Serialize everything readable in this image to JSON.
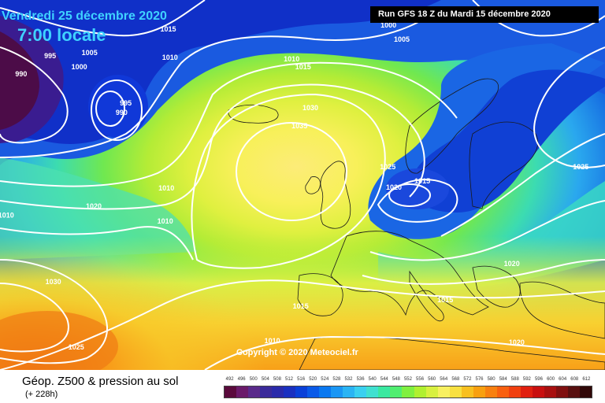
{
  "header": {
    "date": "Vendredi 25 décembre 2020",
    "time": "7:00 locale",
    "run": "Run GFS 18 Z du Mardi 15 décembre 2020"
  },
  "copyright": "Copyright © 2020 Meteociel.fr",
  "legend": {
    "title": "Géop. Z500 & pression au sol",
    "subtitle": "(+ 228h)",
    "scale_labels": [
      "492",
      "496",
      "500",
      "504",
      "508",
      "512",
      "516",
      "520",
      "524",
      "528",
      "532",
      "536",
      "540",
      "544",
      "548",
      "552",
      "556",
      "560",
      "564",
      "568",
      "572",
      "576",
      "580",
      "584",
      "588",
      "592",
      "596",
      "600",
      "604",
      "608",
      "612"
    ],
    "scale_colors": [
      "#5a0a3c",
      "#6a1a6a",
      "#5a2a8a",
      "#3a2a9a",
      "#2a2aaa",
      "#1a30c0",
      "#0a40d8",
      "#0a5ae8",
      "#0a78f0",
      "#1a96f4",
      "#2ab4f4",
      "#3ad0f0",
      "#40e0d0",
      "#3ae8a0",
      "#50ee70",
      "#80f040",
      "#b0f030",
      "#d8f040",
      "#f8f060",
      "#f8e040",
      "#f8c020",
      "#f8a010",
      "#f88010",
      "#f86010",
      "#f04010",
      "#e02010",
      "#c81010",
      "#a81010",
      "#801010",
      "#581010",
      "#300808"
    ]
  },
  "isobars": [
    {
      "label": "1015",
      "x_pct": 27.8,
      "y_pct": 8.5
    },
    {
      "label": "1005",
      "x_pct": 14.8,
      "y_pct": 14.9
    },
    {
      "label": "995",
      "x_pct": 8.3,
      "y_pct": 15.7
    },
    {
      "label": "1000",
      "x_pct": 13.1,
      "y_pct": 18.7
    },
    {
      "label": "1010",
      "x_pct": 28.1,
      "y_pct": 16.2
    },
    {
      "label": "990",
      "x_pct": 3.5,
      "y_pct": 20.6
    },
    {
      "label": "995",
      "x_pct": 20.8,
      "y_pct": 28.5
    },
    {
      "label": "990",
      "x_pct": 20.1,
      "y_pct": 31.1
    },
    {
      "label": "1000",
      "x_pct": 64.2,
      "y_pct": 7.4
    },
    {
      "label": "1005",
      "x_pct": 66.4,
      "y_pct": 11.3
    },
    {
      "label": "1010",
      "x_pct": 48.2,
      "y_pct": 16.6
    },
    {
      "label": "1015",
      "x_pct": 50.1,
      "y_pct": 18.7
    },
    {
      "label": "1030",
      "x_pct": 51.3,
      "y_pct": 29.8
    },
    {
      "label": "1035",
      "x_pct": 49.5,
      "y_pct": 34.7
    },
    {
      "label": "1025",
      "x_pct": 64.1,
      "y_pct": 45.7
    },
    {
      "label": "1015",
      "x_pct": 69.8,
      "y_pct": 49.6
    },
    {
      "label": "1020",
      "x_pct": 65.1,
      "y_pct": 51.3
    },
    {
      "label": "1025",
      "x_pct": 96.0,
      "y_pct": 45.7
    },
    {
      "label": "1010",
      "x_pct": 27.5,
      "y_pct": 51.5
    },
    {
      "label": "1020",
      "x_pct": 15.5,
      "y_pct": 56.4
    },
    {
      "label": "1010",
      "x_pct": 1.0,
      "y_pct": 58.8
    },
    {
      "label": "1010",
      "x_pct": 27.3,
      "y_pct": 60.4
    },
    {
      "label": "1030",
      "x_pct": 8.8,
      "y_pct": 76.8
    },
    {
      "label": "1020",
      "x_pct": 84.6,
      "y_pct": 71.9
    },
    {
      "label": "1015",
      "x_pct": 49.7,
      "y_pct": 83.4
    },
    {
      "label": "1015",
      "x_pct": 73.6,
      "y_pct": 81.7
    },
    {
      "label": "1025",
      "x_pct": 12.6,
      "y_pct": 94.5
    },
    {
      "label": "1010",
      "x_pct": 45.0,
      "y_pct": 92.8
    },
    {
      "label": "1020",
      "x_pct": 85.4,
      "y_pct": 93.2
    }
  ]
}
